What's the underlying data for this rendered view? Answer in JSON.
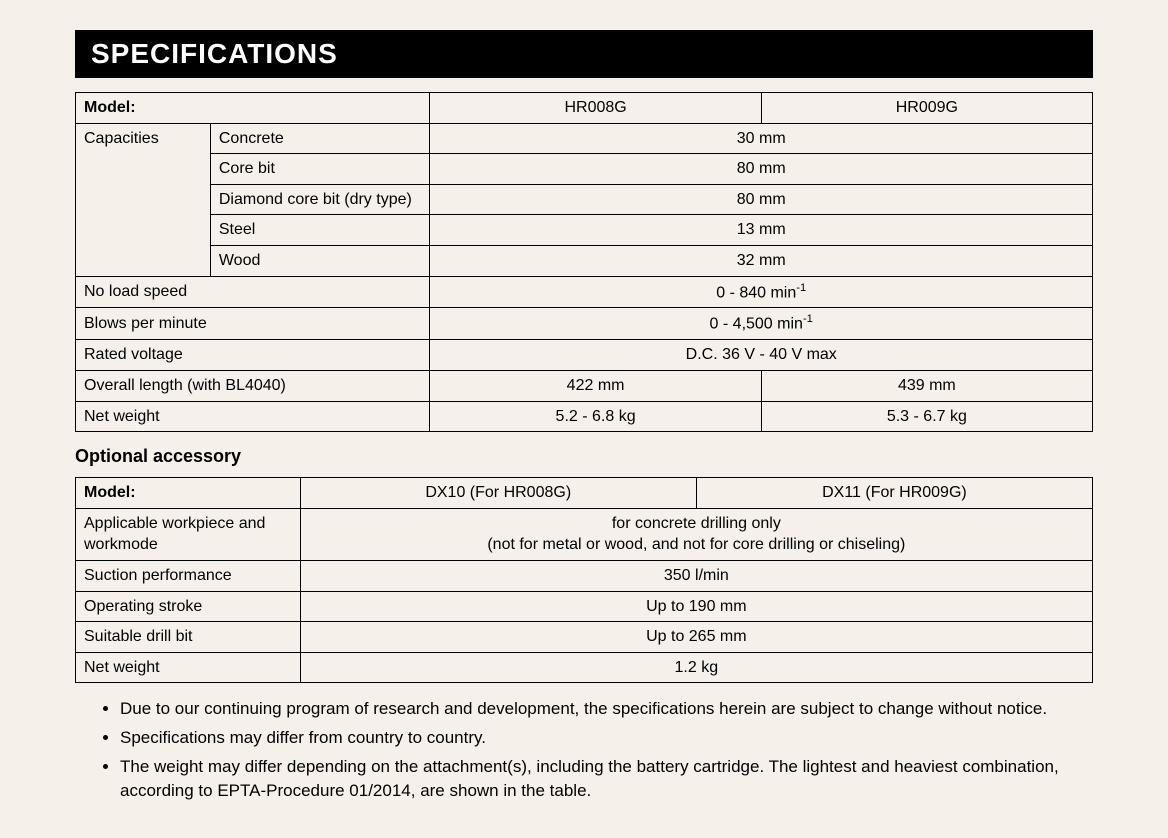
{
  "main_heading": "SPECIFICATIONS",
  "table1": {
    "colwidths_pct": [
      13.2,
      21.5,
      32.65,
      32.65
    ],
    "header_label": "Model:",
    "model_a": "HR008G",
    "model_b": "HR009G",
    "capacities_label": "Capacities",
    "rows": {
      "concrete": {
        "label": "Concrete",
        "value": "30 mm"
      },
      "corebit": {
        "label": "Core bit",
        "value": "80 mm"
      },
      "diamond": {
        "label": "Diamond core bit (dry type)",
        "value": "80 mm"
      },
      "steel": {
        "label": "Steel",
        "value": "13 mm"
      },
      "wood": {
        "label": "Wood",
        "value": "32 mm"
      }
    },
    "noload": {
      "label": "No load speed",
      "value_html": "0 - 840 min<sup>-1</sup>"
    },
    "blows": {
      "label": "Blows per minute",
      "value_html": "0 - 4,500 min<sup>-1</sup>"
    },
    "voltage": {
      "label": "Rated voltage",
      "value": "D.C. 36 V - 40 V max"
    },
    "length": {
      "label": "Overall length (with BL4040)",
      "a": "422 mm",
      "b": "439 mm"
    },
    "weight": {
      "label": "Net weight",
      "a": "5.2 - 6.8 kg",
      "b": "5.3 - 6.7 kg"
    }
  },
  "accessory_heading": "Optional accessory",
  "table2": {
    "header_label": "Model:",
    "model_a": "DX10 (For HR008G)",
    "model_b": "DX11 (For HR009G)",
    "applicable": {
      "label": "Applicable workpiece and workmode",
      "line1": "for concrete drilling only",
      "line2": "(not for metal or wood, and not for core drilling or chiseling)"
    },
    "suction": {
      "label": "Suction performance",
      "value": "350 l/min"
    },
    "stroke": {
      "label": "Operating stroke",
      "value": "Up to 190 mm"
    },
    "drillbit": {
      "label": "Suitable drill bit",
      "value": "Up to 265 mm"
    },
    "weight2": {
      "label": "Net weight",
      "value": "1.2 kg"
    }
  },
  "notes": [
    "Due to our continuing program of research and development, the specifications herein are subject to change without notice.",
    "Specifications may differ from country to country.",
    "The weight may differ depending on the attachment(s), including the battery cartridge. The lightest and heaviest combination, according to EPTA-Procedure 01/2014, are shown in the table."
  ]
}
